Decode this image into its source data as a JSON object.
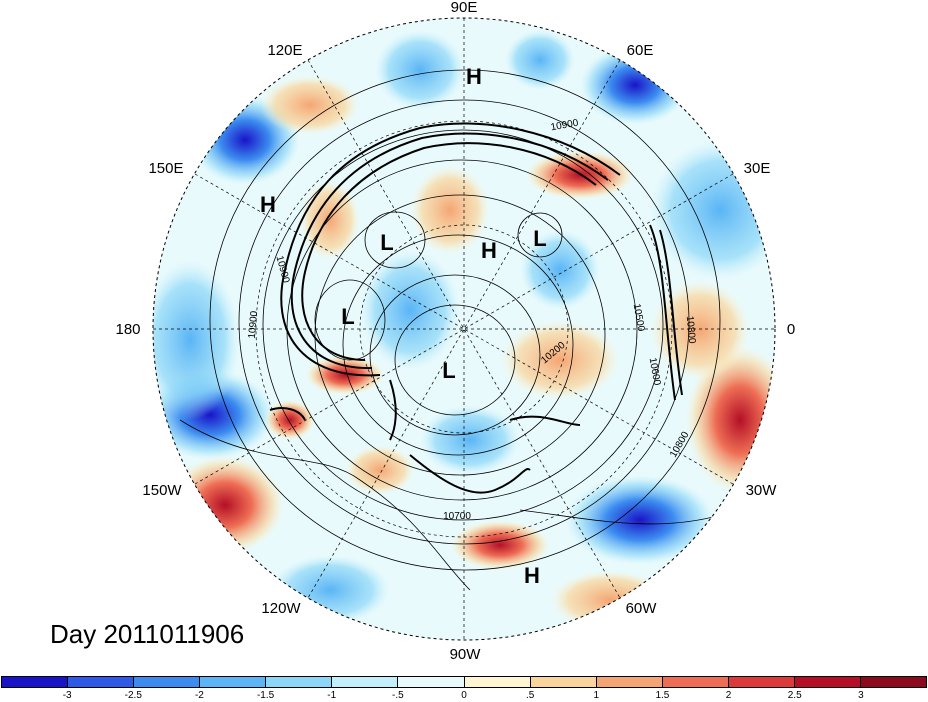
{
  "longitude_labels": [
    "90E",
    "60E",
    "30E",
    "0",
    "30W",
    "60W",
    "90W",
    "120W",
    "150W",
    "180",
    "150E",
    "120E"
  ],
  "pressure_systems": [
    "H",
    "H",
    "L",
    "H",
    "L",
    "L",
    "L",
    "H"
  ],
  "contour_labels": [
    "10900",
    "10900",
    "10900",
    "10500",
    "10800",
    "10200",
    "10600",
    "10800",
    "10700"
  ],
  "date_label": "Day 2011011906",
  "colorbar": {
    "tick_labels": [
      "-3",
      "-2.5",
      "-2",
      "-1.5",
      "-1",
      "-.5",
      "0",
      ".5",
      "1",
      "1.5",
      "2",
      "2.5",
      "3"
    ],
    "colors": [
      "#1a14c8",
      "#2d5ae6",
      "#3c8cf0",
      "#5ab4f5",
      "#8cd7f8",
      "#c3effa",
      "#e8fafc",
      "#fff5d2",
      "#fad59b",
      "#f5a573",
      "#ee6e55",
      "#dc3a3a",
      "#b40f26",
      "#8c0a1e"
    ]
  }
}
